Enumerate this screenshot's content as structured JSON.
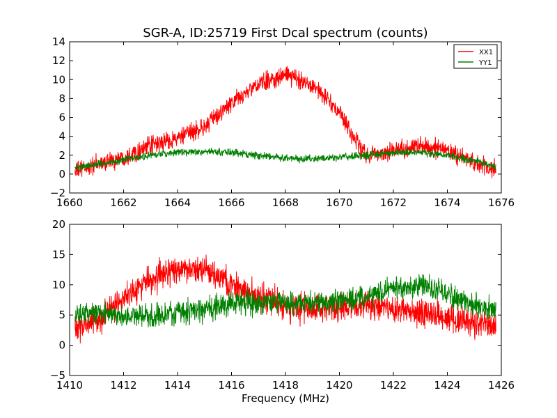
{
  "chart_data": [
    {
      "type": "line",
      "title": "SGR-A, ID:25719 First Dcal spectrum (counts)",
      "xlabel": "",
      "ylabel": "",
      "xlim": [
        1660,
        1676
      ],
      "ylim": [
        -2,
        14
      ],
      "xticks": [
        "1660",
        "1662",
        "1664",
        "1666",
        "1668",
        "1670",
        "1672",
        "1674",
        "1676"
      ],
      "yticks": [
        "−2",
        "0",
        "2",
        "4",
        "6",
        "8",
        "10",
        "12",
        "14"
      ],
      "legend": "top-right",
      "x_range": [
        1660.2,
        1675.8
      ],
      "series": [
        {
          "name": "XX1",
          "color": "#ff0000",
          "envelope": [
            [
              1660.2,
              0.3
            ],
            [
              1661,
              1.0
            ],
            [
              1662,
              1.8
            ],
            [
              1663,
              3.0
            ],
            [
              1664,
              3.8
            ],
            [
              1665,
              5.0
            ],
            [
              1666,
              7.5
            ],
            [
              1667,
              9.5
            ],
            [
              1668,
              10.5
            ],
            [
              1669,
              9.5
            ],
            [
              1670,
              6.5
            ],
            [
              1670.5,
              4.0
            ],
            [
              1671,
              2.0
            ],
            [
              1672,
              2.5
            ],
            [
              1673,
              3.0
            ],
            [
              1674,
              2.5
            ],
            [
              1675,
              1.2
            ],
            [
              1675.8,
              0.4
            ]
          ],
          "noise": 0.9
        },
        {
          "name": "YY1",
          "color": "#008000",
          "envelope": [
            [
              1660.2,
              0.7
            ],
            [
              1661,
              1.0
            ],
            [
              1662,
              1.5
            ],
            [
              1663,
              2.0
            ],
            [
              1664,
              2.3
            ],
            [
              1665,
              2.4
            ],
            [
              1666,
              2.3
            ],
            [
              1667,
              2.0
            ],
            [
              1668,
              1.7
            ],
            [
              1669,
              1.6
            ],
            [
              1670,
              1.8
            ],
            [
              1671,
              2.0
            ],
            [
              1672,
              2.3
            ],
            [
              1673,
              2.3
            ],
            [
              1674,
              2.0
            ],
            [
              1675,
              1.4
            ],
            [
              1675.8,
              0.8
            ]
          ],
          "noise": 0.35
        }
      ]
    },
    {
      "type": "line",
      "title": "",
      "xlabel": "Frequency (MHz)",
      "ylabel": "",
      "xlim": [
        1410,
        1426
      ],
      "ylim": [
        -5,
        20
      ],
      "xticks": [
        "1410",
        "1412",
        "1414",
        "1416",
        "1418",
        "1420",
        "1422",
        "1424",
        "1426"
      ],
      "yticks": [
        "−5",
        "0",
        "5",
        "10",
        "15",
        "20"
      ],
      "x_range": [
        1410.2,
        1425.8
      ],
      "series": [
        {
          "name": "XX1",
          "color": "#ff0000",
          "envelope": [
            [
              1410.2,
              3.0
            ],
            [
              1411,
              4.0
            ],
            [
              1412,
              8.0
            ],
            [
              1413,
              11.0
            ],
            [
              1414,
              12.5
            ],
            [
              1415,
              12.5
            ],
            [
              1416,
              10.0
            ],
            [
              1417,
              8.0
            ],
            [
              1418,
              6.5
            ],
            [
              1419,
              6.0
            ],
            [
              1420,
              6.5
            ],
            [
              1421,
              6.5
            ],
            [
              1422,
              6.0
            ],
            [
              1423,
              5.5
            ],
            [
              1424,
              4.5
            ],
            [
              1425,
              3.5
            ],
            [
              1425.8,
              3.0
            ]
          ],
          "noise": 2.2
        },
        {
          "name": "YY1",
          "color": "#008000",
          "envelope": [
            [
              1410.2,
              5.0
            ],
            [
              1411,
              5.5
            ],
            [
              1412,
              5.0
            ],
            [
              1413,
              4.8
            ],
            [
              1414,
              5.5
            ],
            [
              1415,
              6.0
            ],
            [
              1416,
              7.0
            ],
            [
              1417,
              7.0
            ],
            [
              1418,
              7.0
            ],
            [
              1419,
              7.0
            ],
            [
              1420,
              7.5
            ],
            [
              1421,
              8.0
            ],
            [
              1422,
              9.5
            ],
            [
              1423,
              10.0
            ],
            [
              1424,
              8.5
            ],
            [
              1425,
              6.5
            ],
            [
              1425.8,
              5.5
            ]
          ],
          "noise": 1.8
        }
      ]
    }
  ]
}
